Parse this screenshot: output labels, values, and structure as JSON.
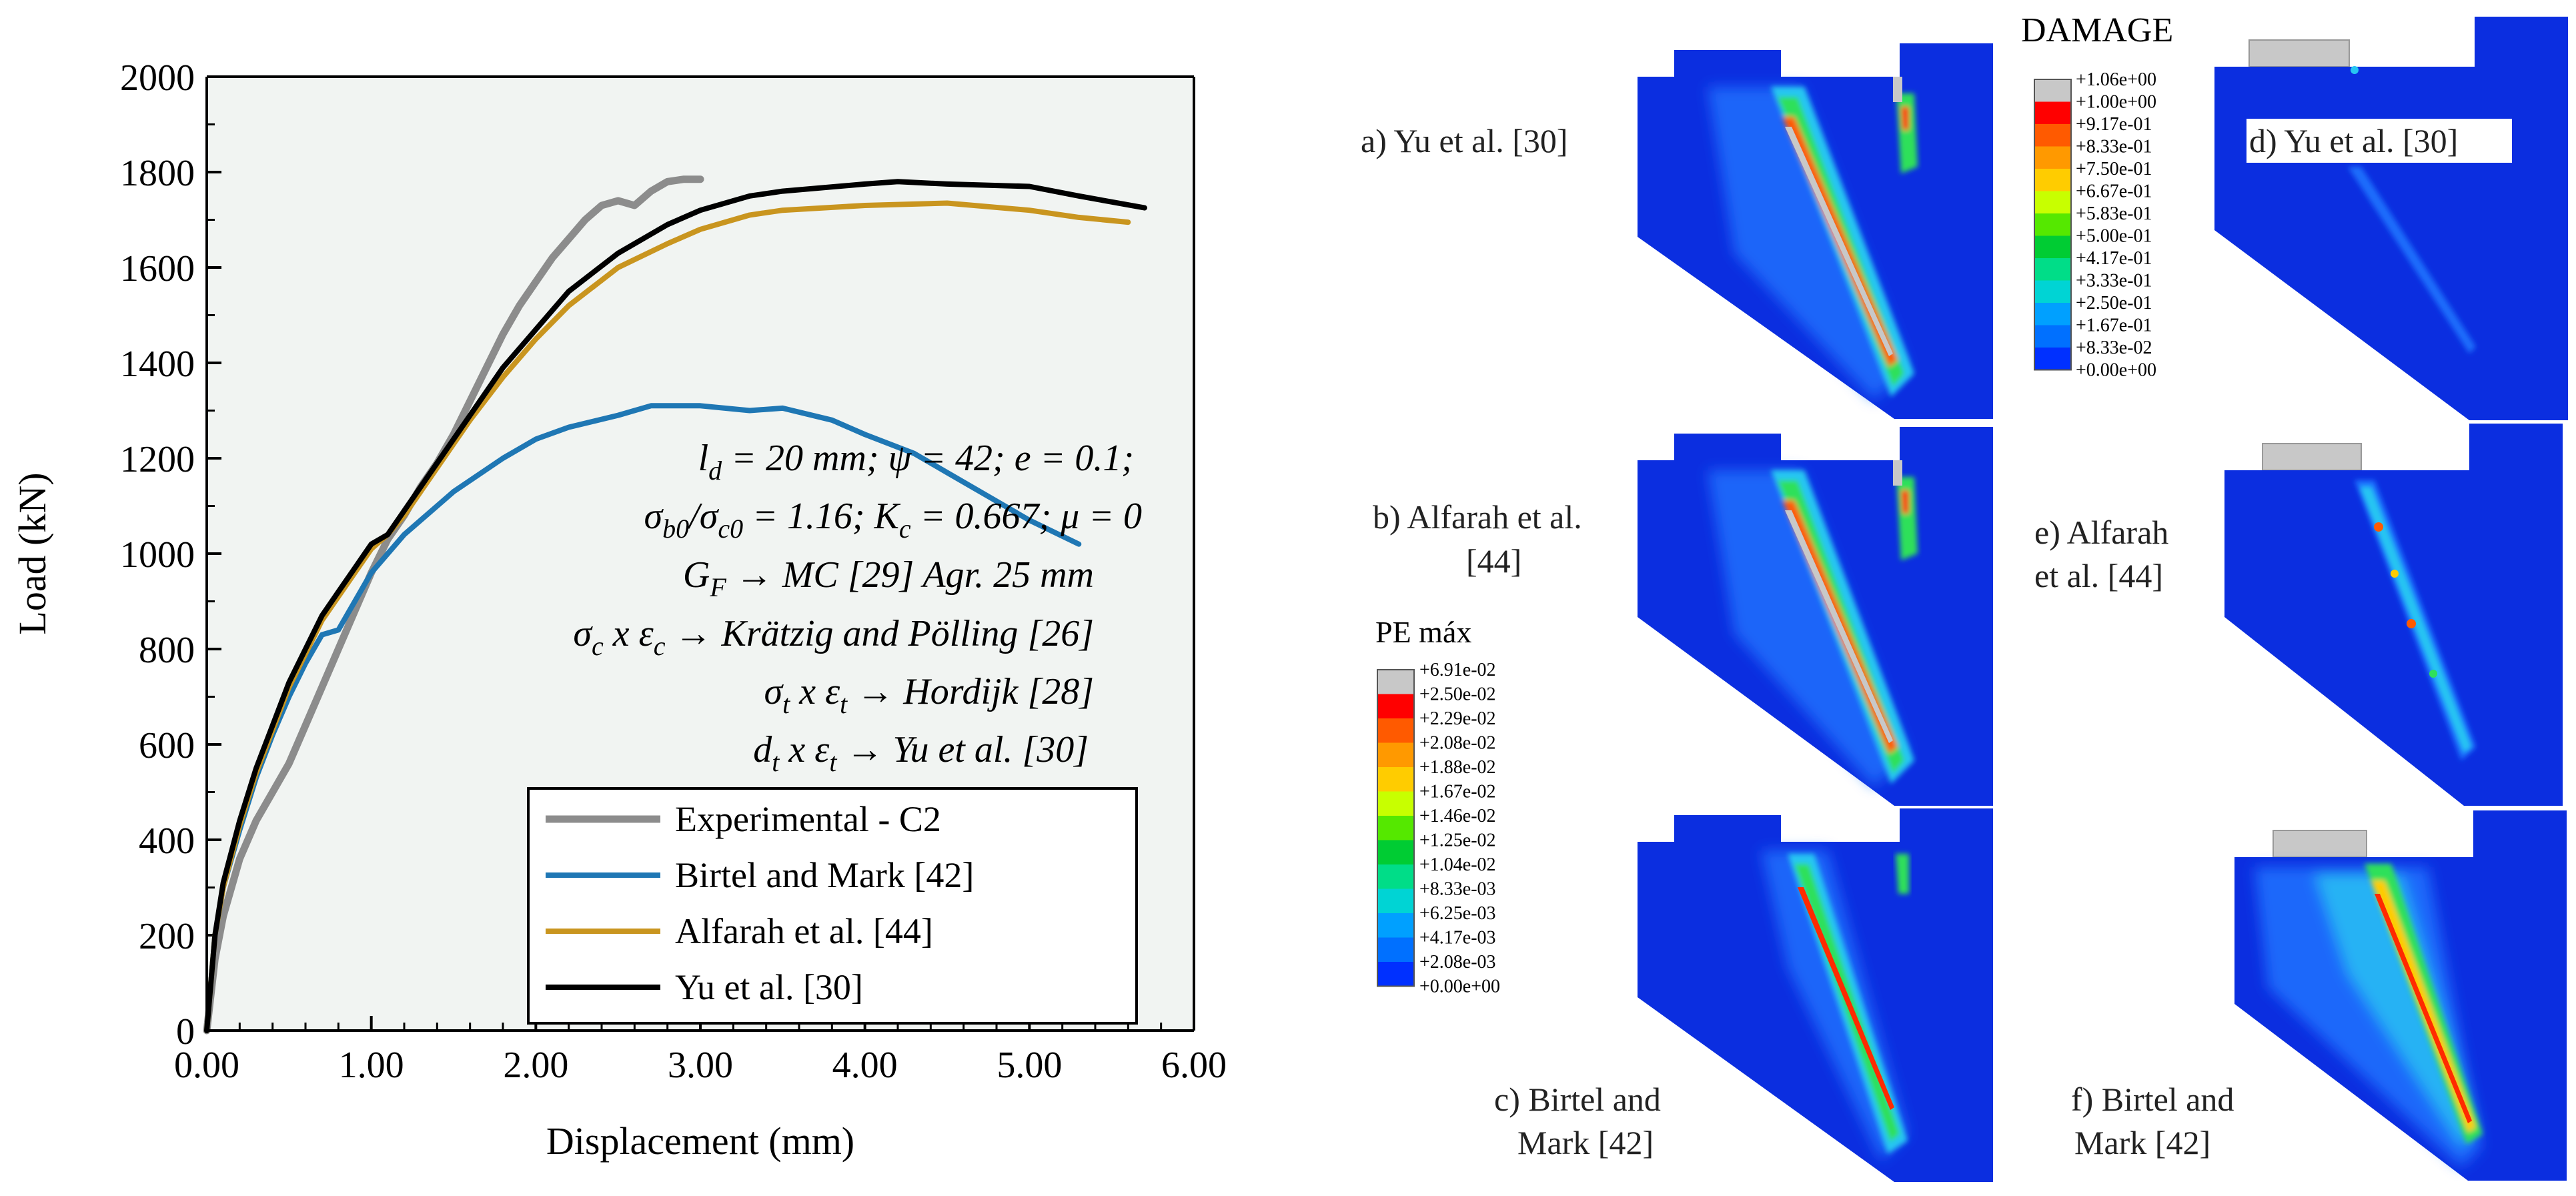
{
  "chart_data": {
    "type": "line",
    "xlabel": "Displacement (mm)",
    "ylabel": "Load (kN)",
    "xlim": [
      0,
      6
    ],
    "ylim": [
      0,
      2000
    ],
    "xticks": [
      "0.00",
      "1.00",
      "2.00",
      "3.00",
      "4.00",
      "5.00",
      "6.00"
    ],
    "yticks": [
      "0",
      "200",
      "400",
      "600",
      "800",
      "1000",
      "1200",
      "1400",
      "1600",
      "1800",
      "2000"
    ],
    "grid": false,
    "legend_position": "bottom-right",
    "series": [
      {
        "name": "Experimental - C2",
        "color": "#8c8c8c",
        "x": [
          0,
          0.05,
          0.1,
          0.2,
          0.3,
          0.4,
          0.5,
          0.6,
          0.7,
          0.8,
          0.9,
          1.0,
          1.1,
          1.2,
          1.3,
          1.4,
          1.5,
          1.6,
          1.7,
          1.8,
          1.9,
          2.0,
          2.1,
          2.2,
          2.3,
          2.4,
          2.5,
          2.6,
          2.7,
          2.8,
          2.9,
          3.0
        ],
        "y": [
          0,
          150,
          240,
          360,
          440,
          500,
          560,
          640,
          720,
          800,
          880,
          960,
          1030,
          1080,
          1140,
          1190,
          1250,
          1320,
          1390,
          1460,
          1520,
          1570,
          1620,
          1660,
          1700,
          1730,
          1740,
          1730,
          1760,
          1780,
          1785,
          1785
        ]
      },
      {
        "name": "Birtel and Mark [42]",
        "color": "#1f77b4",
        "x": [
          0,
          0.05,
          0.1,
          0.2,
          0.3,
          0.4,
          0.5,
          0.6,
          0.7,
          0.8,
          0.9,
          1.0,
          1.2,
          1.5,
          1.8,
          2.0,
          2.2,
          2.5,
          2.7,
          3.0,
          3.3,
          3.5,
          3.8,
          4.0,
          4.3,
          4.5,
          4.8,
          5.0,
          5.3
        ],
        "y": [
          0,
          200,
          300,
          420,
          530,
          620,
          700,
          770,
          830,
          840,
          900,
          960,
          1040,
          1130,
          1200,
          1240,
          1265,
          1290,
          1310,
          1310,
          1300,
          1305,
          1280,
          1250,
          1210,
          1170,
          1110,
          1070,
          1020
        ]
      },
      {
        "name": "Alfarah et al. [44]",
        "color": "#c9951f",
        "x": [
          0,
          0.05,
          0.1,
          0.2,
          0.3,
          0.4,
          0.5,
          0.6,
          0.7,
          0.8,
          0.9,
          1.0,
          1.1,
          1.2,
          1.4,
          1.6,
          1.8,
          2.0,
          2.2,
          2.5,
          2.8,
          3.0,
          3.3,
          3.5,
          4.0,
          4.5,
          5.0,
          5.3,
          5.6
        ],
        "y": [
          0,
          200,
          300,
          430,
          540,
          630,
          720,
          790,
          860,
          910,
          960,
          1010,
          1040,
          1080,
          1180,
          1280,
          1370,
          1450,
          1520,
          1600,
          1650,
          1680,
          1710,
          1720,
          1730,
          1735,
          1720,
          1705,
          1695
        ]
      },
      {
        "name": "Yu et al. [30]",
        "color": "#000000",
        "x": [
          0,
          0.05,
          0.1,
          0.2,
          0.3,
          0.4,
          0.5,
          0.6,
          0.7,
          0.8,
          0.9,
          1.0,
          1.1,
          1.2,
          1.4,
          1.6,
          1.8,
          2.0,
          2.2,
          2.5,
          2.8,
          3.0,
          3.3,
          3.5,
          4.0,
          4.2,
          4.5,
          5.0,
          5.3,
          5.7
        ],
        "y": [
          0,
          200,
          310,
          440,
          550,
          640,
          730,
          800,
          870,
          920,
          970,
          1020,
          1040,
          1090,
          1190,
          1290,
          1390,
          1470,
          1550,
          1630,
          1690,
          1720,
          1750,
          1760,
          1775,
          1780,
          1775,
          1770,
          1750,
          1725
        ]
      }
    ]
  },
  "annotation_lines": [
    "ld = 20 mm; ψ = 42; e = 0.1;",
    "σb0/σc0 = 1.16; Kc = 0.667; μ = 0",
    "GF → MC [29] Agr. 25 mm",
    "σc x εc → Krätzig and Pölling [26]",
    "σt x εt → Hordijk [28]",
    "dt x εt → Yu et al. [30]"
  ],
  "annotation_parts": {
    "l1": {
      "a": "l",
      "a_sub": "d",
      "b": " = 20 mm; ψ = 42; e = 0.1;"
    },
    "l2": {
      "a": "σ",
      "a_sub": "b0",
      "b": "/σ",
      "b_sub": "c0",
      "c": " = 1.16; K",
      "c_sub": "c",
      "d": " = 0.667; μ = 0"
    },
    "l3": {
      "a": "G",
      "a_sub": "F",
      "b": " → MC [29] Agr. 25 mm"
    },
    "l4": {
      "a": "σ",
      "a_sub": "c",
      "b": " x ε",
      "b_sub": "c",
      "c": " → Krätzig and Pölling [26]"
    },
    "l5": {
      "a": "σ",
      "a_sub": "t",
      "b": " x ε",
      "b_sub": "t",
      "c": " → Hordijk [28]"
    },
    "l6": {
      "a": "d",
      "a_sub": "t",
      "b": " x ε",
      "b_sub": "t",
      "c": " → Yu et al. [30]"
    }
  },
  "panels": [
    {
      "label": "a) Yu et al. [30]"
    },
    {
      "label": "b) Alfarah et al. [44]",
      "label_line1": "b) Alfarah et al.",
      "label_line2": "[44]"
    },
    {
      "label": "c) Birtel and Mark [42]",
      "label_line1": "c) Birtel and",
      "label_line2": "Mark [42]"
    },
    {
      "label": "d) Yu et al. [30]"
    },
    {
      "label": "e) Alfarah et al. [44]",
      "label_line1": "e) Alfarah",
      "label_line2": "et al. [44]"
    },
    {
      "label": "f) Birtel and Mark [42]",
      "label_line1": "f) Birtel and",
      "label_line2": "Mark [42]"
    }
  ],
  "damage_legend": {
    "title": "DAMAGE",
    "labels": [
      "+1.06e+00",
      "+1.00e+00",
      "+9.17e-01",
      "+8.33e-01",
      "+7.50e-01",
      "+6.67e-01",
      "+5.83e-01",
      "+5.00e-01",
      "+4.17e-01",
      "+3.33e-01",
      "+2.50e-01",
      "+1.67e-01",
      "+8.33e-02",
      "+0.00e+00"
    ],
    "colors": [
      "#c8c8c8",
      "#ff0000",
      "#ff5a00",
      "#ff9900",
      "#ffcc00",
      "#c8ff00",
      "#55e800",
      "#00cc33",
      "#00dd88",
      "#00d4d4",
      "#00a0ff",
      "#0070ff",
      "#0030ff"
    ]
  },
  "pe_legend": {
    "title": "PE máx",
    "labels": [
      "+6.91e-02",
      "+2.50e-02",
      "+2.29e-02",
      "+2.08e-02",
      "+1.88e-02",
      "+1.67e-02",
      "+1.46e-02",
      "+1.25e-02",
      "+1.04e-02",
      "+8.33e-03",
      "+6.25e-03",
      "+4.17e-03",
      "+2.08e-03",
      "+0.00e+00"
    ],
    "colors": [
      "#c8c8c8",
      "#ff0000",
      "#ff5a00",
      "#ff9900",
      "#ffcc00",
      "#c8ff00",
      "#55e800",
      "#00cc33",
      "#00dd88",
      "#00d4d4",
      "#00a0ff",
      "#0070ff",
      "#0030ff"
    ]
  },
  "colors": {
    "plot_bg": "#f1f4f2",
    "fea_blue": "#0b2ee0",
    "fea_light": "#1f73ff",
    "fea_cyan": "#27c6f2",
    "fea_green": "#2ee05a",
    "fea_red": "#ff2a00",
    "fea_grey": "#c8c8c8"
  }
}
